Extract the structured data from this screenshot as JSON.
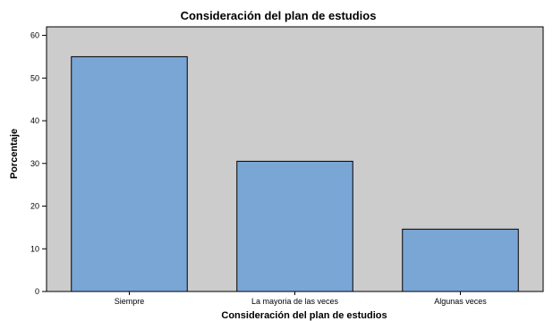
{
  "chart_data": {
    "type": "bar",
    "title": "Consideración del plan de estudios",
    "xlabel": "Consideración del plan de estudios",
    "ylabel": "Porcentaje",
    "categories": [
      "Siempre",
      "La mayoria de las veces",
      "Algunas veces"
    ],
    "values": [
      55.0,
      30.5,
      14.6
    ],
    "ylim": [
      0,
      62
    ],
    "yticks": [
      0,
      10,
      20,
      30,
      40,
      50,
      60
    ],
    "grid": false,
    "legend": "none",
    "colors": {
      "plot_background": "#cccccc",
      "bar_fill": "#7aa6d6",
      "bar_stroke": "#000000"
    }
  }
}
